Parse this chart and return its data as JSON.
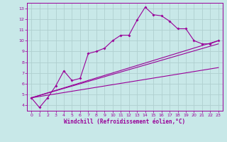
{
  "title": "",
  "xlabel": "Windchill (Refroidissement éolien,°C)",
  "ylabel": "",
  "bg_color": "#c8e8e8",
  "grid_color": "#b0d0d0",
  "line_color": "#990099",
  "xlim": [
    -0.5,
    23.5
  ],
  "ylim": [
    3.5,
    13.5
  ],
  "xticks": [
    0,
    1,
    2,
    3,
    4,
    5,
    6,
    7,
    8,
    9,
    10,
    11,
    12,
    13,
    14,
    15,
    16,
    17,
    18,
    19,
    20,
    21,
    22,
    23
  ],
  "yticks": [
    4,
    5,
    6,
    7,
    8,
    9,
    10,
    11,
    12,
    13
  ],
  "series": {
    "main": {
      "x": [
        0,
        1,
        2,
        3,
        4,
        5,
        6,
        7,
        8,
        9,
        10,
        11,
        12,
        13,
        14,
        15,
        16,
        17,
        18,
        19,
        20,
        21,
        22,
        23
      ],
      "y": [
        4.7,
        3.8,
        4.7,
        5.8,
        7.2,
        6.3,
        6.5,
        8.8,
        9.0,
        9.3,
        10.0,
        10.5,
        10.5,
        11.9,
        13.1,
        12.4,
        12.3,
        11.8,
        11.1,
        11.1,
        10.0,
        9.7,
        9.7,
        10.0
      ]
    },
    "line2": {
      "x": [
        0,
        23
      ],
      "y": [
        4.7,
        10.0
      ]
    },
    "line3": {
      "x": [
        0,
        23
      ],
      "y": [
        4.7,
        9.7
      ]
    },
    "line4": {
      "x": [
        0,
        23
      ],
      "y": [
        4.7,
        7.5
      ]
    }
  }
}
